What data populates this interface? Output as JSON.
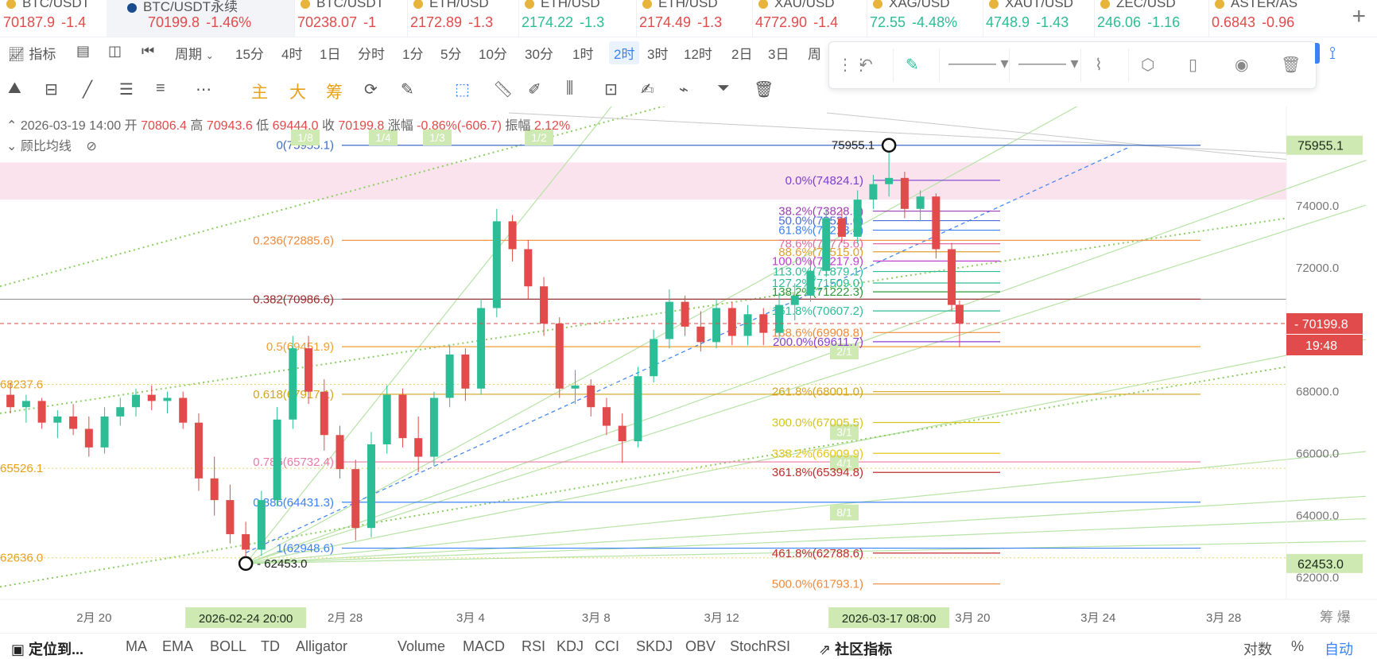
{
  "tickers": [
    {
      "symbol": "BTC/USDT",
      "price": "70187.9",
      "change": "-1.4",
      "up": false
    },
    {
      "symbol": "BTC/USDT永续",
      "price": "70199.8",
      "change": "-1.46%",
      "up": false,
      "active": true
    },
    {
      "symbol": "BTC/USDT",
      "price": "70238.07",
      "change": "-1",
      "up": false
    },
    {
      "symbol": "ETH/USD",
      "price": "2172.89",
      "change": "-1.3",
      "up": false
    },
    {
      "symbol": "ETH/USD",
      "price": "2174.22",
      "change": "-1.3",
      "up": true
    },
    {
      "symbol": "ETH/USD",
      "price": "2174.49",
      "change": "-1.3",
      "up": false
    },
    {
      "symbol": "XAU/USD",
      "price": "4772.90",
      "change": "-1.4",
      "up": false
    },
    {
      "symbol": "XAG/USD",
      "price": "72.55",
      "change": "-4.48%",
      "up": true
    },
    {
      "symbol": "XAUT/USD",
      "price": "4748.9",
      "change": "-1.43",
      "up": true
    },
    {
      "symbol": "ZEC/USD",
      "price": "246.06",
      "change": "-1.16",
      "up": true
    },
    {
      "symbol": "ASTER/AS",
      "price": "0.6843",
      "change": "-0.96",
      "up": false
    }
  ],
  "period_bar": {
    "indicator_label": "指标",
    "period_label": "周期",
    "periods": [
      "15分",
      "4时",
      "1日",
      "分时",
      "1分",
      "5分",
      "10分",
      "30分",
      "1时",
      "2时",
      "3时",
      "12时",
      "2日",
      "3日",
      "周"
    ],
    "selected": "2时"
  },
  "tool_bar": {
    "main": "主",
    "big": "大",
    "chips": "筹"
  },
  "info_line": {
    "datetime": "2026-03-19 14:00",
    "open_label": "开",
    "open": "70806.4",
    "high_label": "高",
    "high": "70943.6",
    "low_label": "低",
    "low": "69444.0",
    "close_label": "收",
    "close": "70199.8",
    "change_label": "涨幅",
    "change": "-0.86%(-606.7)",
    "amp_label": "振幅",
    "amp": "2.12%"
  },
  "indicator_name": "顾比均线",
  "bottom_bar": {
    "locate": "定位到...",
    "indicators": [
      "MA",
      "EMA",
      "BOLL",
      "TD",
      "Alligator",
      "Volume",
      "MACD",
      "RSI",
      "KDJ",
      "CCI",
      "SKDJ",
      "OBV",
      "StochRSI"
    ],
    "community": "社区指标",
    "log": "对数",
    "pct": "%",
    "auto": "自动"
  },
  "colors": {
    "up": "#2dbd96",
    "down": "#e14b4b",
    "accent": "#3b82f6"
  },
  "chart_data": {
    "type": "candlestick",
    "ylim": [
      61500,
      77000
    ],
    "y_ticks": [
      62000,
      64000,
      66000,
      68000,
      70000,
      72000,
      74000
    ],
    "y_tick_labels": [
      "62000.0",
      "64000.0",
      "66000.0",
      "68000.0",
      "70000.0",
      "72000.0",
      "74000.0"
    ],
    "x_tick_labels": [
      "2月 20",
      "2月 28",
      "3月 4",
      "3月 8",
      "3月 12",
      "3月 20",
      "3月 24",
      "3月 28"
    ],
    "x_tick_dates": [
      "2026-02-20",
      "2026-02-28",
      "2026-03-04",
      "2026-03-08",
      "2026-03-12",
      "2026-03-20",
      "2026-03-24",
      "2026-03-28"
    ],
    "x_start": "2026-02-17",
    "x_end": "2026-03-30",
    "crosshair_x_labels": [
      "2026-02-24 20:00",
      "2026-03-17 08:00"
    ],
    "y_scale_labels": [
      "62453.0",
      "75955.1"
    ],
    "last_price": "70199.8",
    "countdown": "19:48",
    "swing_low": {
      "date": "2026-02-24",
      "value": 62453.0,
      "label": "62453.0"
    },
    "swing_high": {
      "date": "2026-03-17",
      "value": 75955.1,
      "label": "75955.1"
    },
    "fib_retracement": [
      {
        "label": "0(75955.1)",
        "value": 75955.1
      },
      {
        "label": "0.236(72885.6)",
        "value": 72885.6
      },
      {
        "label": "0.382(70986.6)",
        "value": 70986.6
      },
      {
        "label": "0.5(69451.9)",
        "value": 69451.9
      },
      {
        "label": "0.618(67917.1)",
        "value": 67917.1
      },
      {
        "label": "0.786(65732.4)",
        "value": 65732.4
      },
      {
        "label": "0.886(64431.3)",
        "value": 64431.3
      },
      {
        "label": "1(62948.6)",
        "value": 62948.6
      }
    ],
    "fib_extension": [
      {
        "label": "0.0%(74824.1)",
        "value": 74824.1
      },
      {
        "label": "38.2%(73828.5)",
        "value": 73828.5
      },
      {
        "label": "50.0%(73521.0)",
        "value": 73521.0
      },
      {
        "label": "61.8%(73213.4)",
        "value": 73213.4
      },
      {
        "label": "78.6%(72775.6)",
        "value": 72775.6
      },
      {
        "label": "88.6%(72515.0)",
        "value": 72515.0
      },
      {
        "label": "100.0%(72217.9)",
        "value": 72217.9
      },
      {
        "label": "113.0%(71879.1)",
        "value": 71879.1
      },
      {
        "label": "127.2%(71509.0)",
        "value": 71509.0
      },
      {
        "label": "138.2%(71222.3)",
        "value": 71222.3
      },
      {
        "label": "161.8%(70607.2)",
        "value": 70607.2
      },
      {
        "label": "188.6%(69908.8)",
        "value": 69908.8
      },
      {
        "label": "200.0%(69611.7)",
        "value": 69611.7
      },
      {
        "label": "261.8%(68001.0)",
        "value": 68001.0
      },
      {
        "label": "300.0%(67005.5)",
        "value": 67005.5
      },
      {
        "label": "338.2%(66009.9)",
        "value": 66009.9
      },
      {
        "label": "361.8%(65394.8)",
        "value": 65394.8
      },
      {
        "label": "461.8%(62788.6)",
        "value": 62788.6
      },
      {
        "label": "500.0%(61793.1)",
        "value": 61793.1
      }
    ],
    "left_cut_labels": [
      "68237.6",
      "65526.1",
      "62636.0"
    ],
    "fan_labels": [
      "1/8",
      "1/4",
      "1/3",
      "1/2",
      "2/1",
      "3/1",
      "4/1",
      "8/1"
    ],
    "candles": [
      {
        "t": "2026-02-17 08:00",
        "o": 67900,
        "h": 68300,
        "l": 67300,
        "c": 67500
      },
      {
        "t": "2026-02-17 20:00",
        "o": 67500,
        "h": 67900,
        "l": 67000,
        "c": 67700
      },
      {
        "t": "2026-02-18 08:00",
        "o": 67700,
        "h": 67800,
        "l": 66800,
        "c": 67000
      },
      {
        "t": "2026-02-18 20:00",
        "o": 67000,
        "h": 67400,
        "l": 66500,
        "c": 67200
      },
      {
        "t": "2026-02-19 08:00",
        "o": 67200,
        "h": 67600,
        "l": 66600,
        "c": 66800
      },
      {
        "t": "2026-02-19 20:00",
        "o": 66800,
        "h": 67200,
        "l": 65900,
        "c": 66200
      },
      {
        "t": "2026-02-20 08:00",
        "o": 66200,
        "h": 67500,
        "l": 66000,
        "c": 67200
      },
      {
        "t": "2026-02-20 20:00",
        "o": 67200,
        "h": 67800,
        "l": 66900,
        "c": 67500
      },
      {
        "t": "2026-02-21 08:00",
        "o": 67500,
        "h": 68100,
        "l": 67200,
        "c": 67900
      },
      {
        "t": "2026-02-21 20:00",
        "o": 67900,
        "h": 68200,
        "l": 67400,
        "c": 67700
      },
      {
        "t": "2026-02-22 08:00",
        "o": 67700,
        "h": 68000,
        "l": 67300,
        "c": 67800
      },
      {
        "t": "2026-02-22 20:00",
        "o": 67800,
        "h": 68000,
        "l": 66800,
        "c": 67000
      },
      {
        "t": "2026-02-23 08:00",
        "o": 67000,
        "h": 67300,
        "l": 64800,
        "c": 65200
      },
      {
        "t": "2026-02-23 20:00",
        "o": 65200,
        "h": 65900,
        "l": 64000,
        "c": 64500
      },
      {
        "t": "2026-02-24 08:00",
        "o": 64500,
        "h": 65000,
        "l": 63100,
        "c": 63400
      },
      {
        "t": "2026-02-24 20:00",
        "o": 63400,
        "h": 63800,
        "l": 62453,
        "c": 62900
      },
      {
        "t": "2026-02-25 08:00",
        "o": 62900,
        "h": 64800,
        "l": 62700,
        "c": 64500
      },
      {
        "t": "2026-02-25 20:00",
        "o": 64500,
        "h": 67500,
        "l": 64300,
        "c": 67100
      },
      {
        "t": "2026-02-26 08:00",
        "o": 67100,
        "h": 69800,
        "l": 66800,
        "c": 69400
      },
      {
        "t": "2026-02-26 20:00",
        "o": 69400,
        "h": 69800,
        "l": 67600,
        "c": 68000
      },
      {
        "t": "2026-02-27 08:00",
        "o": 68000,
        "h": 68400,
        "l": 66100,
        "c": 66600
      },
      {
        "t": "2026-02-27 20:00",
        "o": 66600,
        "h": 66900,
        "l": 65200,
        "c": 65500
      },
      {
        "t": "2026-02-28 08:00",
        "o": 65500,
        "h": 65800,
        "l": 63200,
        "c": 63600
      },
      {
        "t": "2026-02-28 20:00",
        "o": 63600,
        "h": 66700,
        "l": 63300,
        "c": 66300
      },
      {
        "t": "2026-03-01 08:00",
        "o": 66300,
        "h": 68200,
        "l": 66000,
        "c": 67900
      },
      {
        "t": "2026-03-01 20:00",
        "o": 67900,
        "h": 68100,
        "l": 66200,
        "c": 66500
      },
      {
        "t": "2026-03-02 08:00",
        "o": 66500,
        "h": 67200,
        "l": 65400,
        "c": 65900
      },
      {
        "t": "2026-03-02 20:00",
        "o": 65900,
        "h": 68000,
        "l": 65600,
        "c": 67800
      },
      {
        "t": "2026-03-03 08:00",
        "o": 67800,
        "h": 69500,
        "l": 67500,
        "c": 69200
      },
      {
        "t": "2026-03-03 20:00",
        "o": 69200,
        "h": 69400,
        "l": 67700,
        "c": 68100
      },
      {
        "t": "2026-03-04 08:00",
        "o": 68100,
        "h": 71000,
        "l": 67900,
        "c": 70700
      },
      {
        "t": "2026-03-04 20:00",
        "o": 70700,
        "h": 73900,
        "l": 70400,
        "c": 73500
      },
      {
        "t": "2026-03-05 08:00",
        "o": 73500,
        "h": 73700,
        "l": 72200,
        "c": 72600
      },
      {
        "t": "2026-03-05 20:00",
        "o": 72600,
        "h": 72900,
        "l": 71000,
        "c": 71400
      },
      {
        "t": "2026-03-06 08:00",
        "o": 71400,
        "h": 71700,
        "l": 69800,
        "c": 70200
      },
      {
        "t": "2026-03-06 20:00",
        "o": 70200,
        "h": 70400,
        "l": 67800,
        "c": 68100
      },
      {
        "t": "2026-03-07 08:00",
        "o": 68100,
        "h": 68700,
        "l": 67600,
        "c": 68200
      },
      {
        "t": "2026-03-07 20:00",
        "o": 68200,
        "h": 68400,
        "l": 67200,
        "c": 67500
      },
      {
        "t": "2026-03-08 08:00",
        "o": 67500,
        "h": 67800,
        "l": 66600,
        "c": 66900
      },
      {
        "t": "2026-03-08 20:00",
        "o": 66900,
        "h": 67300,
        "l": 65700,
        "c": 66400
      },
      {
        "t": "2026-03-09 08:00",
        "o": 66400,
        "h": 68800,
        "l": 66200,
        "c": 68500
      },
      {
        "t": "2026-03-09 20:00",
        "o": 68500,
        "h": 70000,
        "l": 68300,
        "c": 69700
      },
      {
        "t": "2026-03-10 08:00",
        "o": 69700,
        "h": 71300,
        "l": 69400,
        "c": 70900
      },
      {
        "t": "2026-03-10 20:00",
        "o": 70900,
        "h": 71100,
        "l": 69800,
        "c": 70100
      },
      {
        "t": "2026-03-11 08:00",
        "o": 70100,
        "h": 70600,
        "l": 69300,
        "c": 69600
      },
      {
        "t": "2026-03-11 20:00",
        "o": 69600,
        "h": 71000,
        "l": 69400,
        "c": 70700
      },
      {
        "t": "2026-03-12 08:00",
        "o": 70700,
        "h": 70900,
        "l": 69500,
        "c": 69800
      },
      {
        "t": "2026-03-12 20:00",
        "o": 69800,
        "h": 70800,
        "l": 69500,
        "c": 70500
      },
      {
        "t": "2026-03-13 08:00",
        "o": 70500,
        "h": 70700,
        "l": 69500,
        "c": 69900
      },
      {
        "t": "2026-03-13 20:00",
        "o": 69900,
        "h": 71200,
        "l": 69700,
        "c": 70800
      },
      {
        "t": "2026-03-14 08:00",
        "o": 70800,
        "h": 71500,
        "l": 70300,
        "c": 71100
      },
      {
        "t": "2026-03-14 20:00",
        "o": 71100,
        "h": 72300,
        "l": 70900,
        "c": 71900
      },
      {
        "t": "2026-03-15 08:00",
        "o": 71900,
        "h": 73900,
        "l": 71700,
        "c": 73600
      },
      {
        "t": "2026-03-15 20:00",
        "o": 73600,
        "h": 73900,
        "l": 72800,
        "c": 73000
      },
      {
        "t": "2026-03-16 08:00",
        "o": 73000,
        "h": 74500,
        "l": 72800,
        "c": 74200
      },
      {
        "t": "2026-03-16 20:00",
        "o": 74200,
        "h": 75000,
        "l": 73900,
        "c": 74700
      },
      {
        "t": "2026-03-17 08:00",
        "o": 74700,
        "h": 75955.1,
        "l": 74300,
        "c": 74900
      },
      {
        "t": "2026-03-17 20:00",
        "o": 74900,
        "h": 75100,
        "l": 73600,
        "c": 73900
      },
      {
        "t": "2026-03-18 08:00",
        "o": 73900,
        "h": 74500,
        "l": 73500,
        "c": 74300
      },
      {
        "t": "2026-03-18 20:00",
        "o": 74300,
        "h": 74400,
        "l": 72300,
        "c": 72600
      },
      {
        "t": "2026-03-19 08:00",
        "o": 72600,
        "h": 72800,
        "l": 70600,
        "c": 70800
      },
      {
        "t": "2026-03-19 14:00",
        "o": 70806.4,
        "h": 70943.6,
        "l": 69444.0,
        "c": 70199.8
      }
    ]
  }
}
